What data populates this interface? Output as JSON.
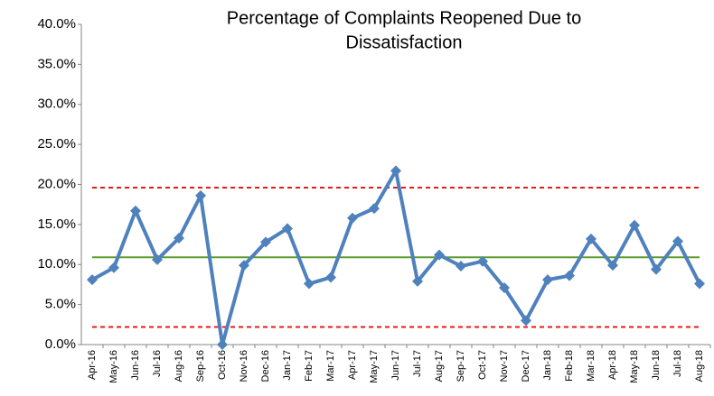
{
  "chart_data": {
    "type": "line",
    "title": [
      "Percentage of Complaints Reopened Due to",
      "Dissatisfaction"
    ],
    "categories": [
      "Apr-16",
      "May-16",
      "Jun-16",
      "Jul-16",
      "Aug-16",
      "Sep-16",
      "Oct-16",
      "Nov-16",
      "Dec-16",
      "Jan-17",
      "Feb-17",
      "Mar-17",
      "Apr-17",
      "May-17",
      "Jun-17",
      "Jul-17",
      "Aug-17",
      "Sep-17",
      "Oct-17",
      "Nov-17",
      "Dec-17",
      "Jan-18",
      "Feb-18",
      "Mar-18",
      "Apr-18",
      "May-18",
      "Jun-18",
      "Jul-18",
      "Aug-18"
    ],
    "series": [
      {
        "color": "#4f81bd",
        "values": [
          8.1,
          9.6,
          16.7,
          10.6,
          13.3,
          18.6,
          0.0,
          9.9,
          12.8,
          14.5,
          7.6,
          8.4,
          15.8,
          17.0,
          21.7,
          7.9,
          11.2,
          9.8,
          10.4,
          7.1,
          3.0,
          8.1,
          8.6,
          13.2,
          9.9,
          14.9,
          9.4,
          12.9,
          7.6
        ]
      }
    ],
    "reference_lines": [
      {
        "value": 19.6,
        "color": "#e8191b",
        "style": "dashed"
      },
      {
        "value": 10.9,
        "color": "#5a9a2c",
        "style": "solid"
      },
      {
        "value": 2.2,
        "color": "#e8191b",
        "style": "dashed"
      }
    ],
    "ylim": [
      0,
      40
    ],
    "yticks": [
      {
        "value": 0,
        "label": "0.0%"
      },
      {
        "value": 5,
        "label": "5.0%"
      },
      {
        "value": 10,
        "label": "10.0%"
      },
      {
        "value": 15,
        "label": "15.0%"
      },
      {
        "value": 20,
        "label": "20.0%"
      },
      {
        "value": 25,
        "label": "25.0%"
      },
      {
        "value": 30,
        "label": "30.0%"
      },
      {
        "value": 35,
        "label": "35.0%"
      },
      {
        "value": 40,
        "label": "40.0%"
      }
    ],
    "grid": false
  }
}
